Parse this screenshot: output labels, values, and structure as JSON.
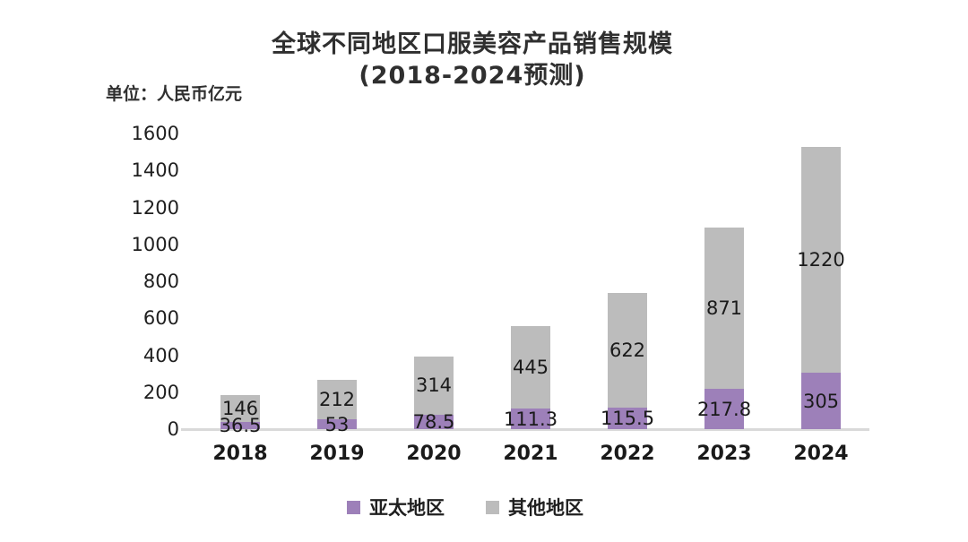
{
  "title": {
    "line1": "全球不同地区口服美容产品销售规模",
    "line2": "(2018-2024预测)"
  },
  "unit_label": "单位：人民币亿元",
  "chart_data": {
    "type": "bar",
    "stacked": true,
    "title": "全球不同地区口服美容产品销售规模 (2018-2024预测)",
    "ylabel": "单位：人民币亿元",
    "categories": [
      "2018",
      "2019",
      "2020",
      "2021",
      "2022",
      "2023",
      "2024"
    ],
    "series": [
      {
        "name": "亚太地区",
        "color": "#9d80b9",
        "values": [
          36.5,
          53,
          78.5,
          111.3,
          115.5,
          217.8,
          305
        ]
      },
      {
        "name": "其他地区",
        "color": "#bcbcbc",
        "values": [
          146,
          212,
          314,
          445,
          622,
          871,
          1220
        ]
      }
    ],
    "ylim": [
      0,
      1600
    ],
    "ytick_step": 200,
    "grid": false,
    "legend_position": "bottom",
    "axis_line_color": "#d9d9d9"
  }
}
